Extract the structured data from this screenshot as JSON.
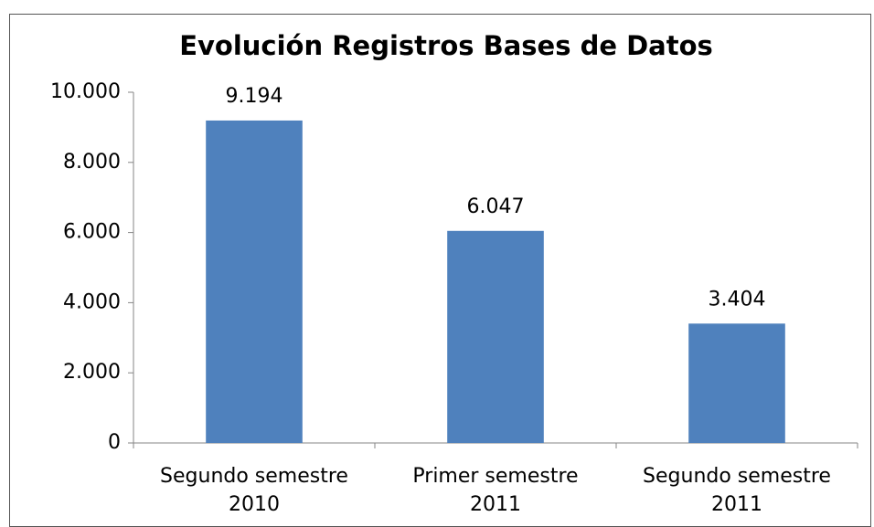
{
  "chart_data": {
    "type": "bar",
    "title": "Evolución Registros Bases de Datos",
    "categories": [
      "Segundo semestre 2010",
      "Primer semestre 2011",
      "Segundo semestre 2011"
    ],
    "values": [
      9194,
      6047,
      3404
    ],
    "value_labels": [
      "9.194",
      "6.047",
      "3.404"
    ],
    "color": "#4f81bd",
    "ylim": [
      0,
      10000
    ],
    "yticks": [
      0,
      {
        "value": 2000,
        "label": "2.000"
      },
      {
        "value": 4000,
        "label": "4.000"
      },
      {
        "value": 6000,
        "label": "6.000"
      },
      {
        "value": 8000,
        "label": "8.000"
      },
      {
        "value": 10000,
        "label": "10.000"
      }
    ],
    "grid": false
  }
}
